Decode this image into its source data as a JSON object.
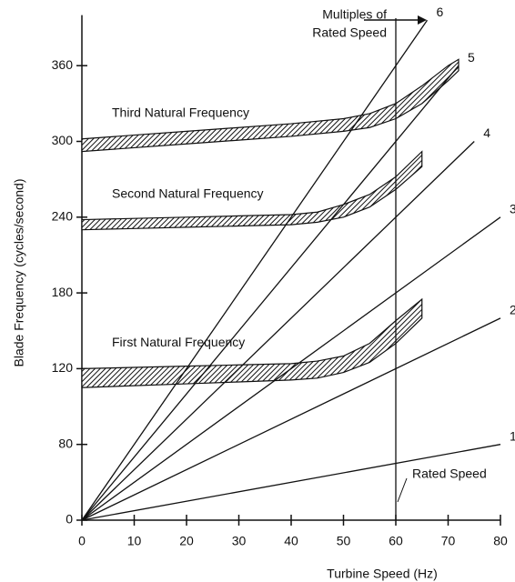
{
  "chart_data": {
    "type": "line",
    "x_label": "Turbine Speed (Hz)",
    "y_label": "Blade Frequency (cycles/second)",
    "xlim": [
      0,
      80
    ],
    "xticks": [
      0,
      10,
      20,
      30,
      40,
      50,
      60,
      70,
      80
    ],
    "ylim": [
      0,
      400
    ],
    "yticks": [
      0,
      80,
      120,
      180,
      240,
      300,
      360
    ],
    "color": "#111111",
    "series": [
      {
        "name": "1",
        "x": [
          0,
          80
        ],
        "values": [
          0,
          80
        ]
      },
      {
        "name": "2",
        "x": [
          0,
          80
        ],
        "values": [
          0,
          160
        ]
      },
      {
        "name": "3",
        "x": [
          0,
          80
        ],
        "values": [
          0,
          240
        ]
      },
      {
        "name": "4",
        "x": [
          0,
          75
        ],
        "values": [
          0,
          300
        ]
      },
      {
        "name": "5",
        "x": [
          0,
          72
        ],
        "values": [
          0,
          360
        ]
      },
      {
        "name": "6",
        "x": [
          0,
          66
        ],
        "values": [
          0,
          396
        ]
      }
    ],
    "bands": [
      {
        "name": "First Natural Frequency",
        "x": [
          0,
          10,
          20,
          30,
          40,
          45,
          50,
          55,
          60,
          65
        ],
        "lower": [
          110,
          111,
          112,
          113,
          114,
          115,
          118,
          125,
          140,
          160
        ],
        "upper": [
          120,
          121,
          122,
          123,
          124,
          126,
          130,
          140,
          158,
          175
        ]
      },
      {
        "name": "Second Natural Frequency",
        "x": [
          0,
          10,
          20,
          30,
          40,
          45,
          50,
          55,
          60,
          65
        ],
        "lower": [
          230,
          231,
          232,
          233,
          234,
          236,
          240,
          248,
          262,
          280
        ],
        "upper": [
          238,
          239,
          240,
          241,
          242,
          244,
          250,
          258,
          272,
          292
        ]
      },
      {
        "name": "Third Natural Frequency",
        "x": [
          0,
          10,
          20,
          30,
          40,
          50,
          55,
          60,
          65,
          70,
          72
        ],
        "lower": [
          292,
          295,
          298,
          301,
          304,
          308,
          311,
          318,
          330,
          348,
          356
        ],
        "upper": [
          302,
          305,
          308,
          311,
          314,
          318,
          322,
          330,
          344,
          360,
          365
        ]
      }
    ],
    "rated_speed": 60,
    "rated_speed_label": "Rated Speed",
    "multiples_label": [
      "Multiples of",
      "Rated Speed"
    ]
  }
}
